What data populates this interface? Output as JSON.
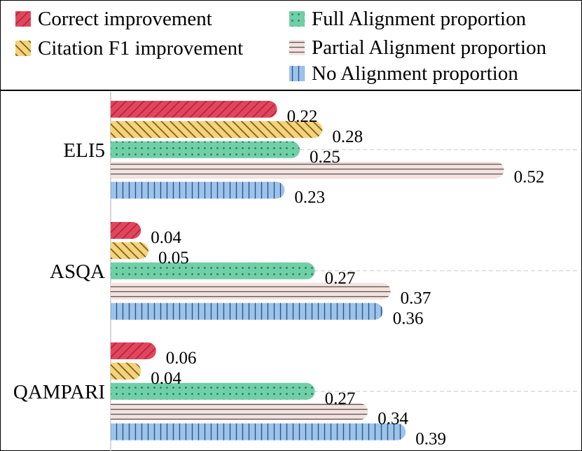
{
  "chart_data": {
    "type": "bar",
    "orientation": "horizontal",
    "categories": [
      "ELI5",
      "ASQA",
      "QAMPARI"
    ],
    "series": [
      {
        "name": "Correct improvement",
        "color": "#e0475e",
        "pattern": "diagonal-back",
        "values": [
          0.22,
          0.04,
          0.06
        ]
      },
      {
        "name": "Citation F1 improvement",
        "color": "#f6d37a",
        "pattern": "diagonal-forward",
        "values": [
          0.28,
          0.05,
          0.04
        ]
      },
      {
        "name": "Full Alignment proportion",
        "color": "#6fcfa6",
        "pattern": "dots",
        "values": [
          0.25,
          0.27,
          0.27
        ]
      },
      {
        "name": "Partial Alignment proportion",
        "color": "#f5e2de",
        "pattern": "horizontal-lines",
        "values": [
          0.52,
          0.37,
          0.34
        ]
      },
      {
        "name": "No Alignment proportion",
        "color": "#9cc3ea",
        "pattern": "vertical-lines",
        "values": [
          0.23,
          0.36,
          0.39
        ]
      }
    ],
    "value_labels": [
      [
        "0.22",
        "0.04",
        "0.06"
      ],
      [
        "0.28",
        "0.05",
        "0.04"
      ],
      [
        "0.25",
        "0.27",
        "0.27"
      ],
      [
        "0.52",
        "0.37",
        "0.34"
      ],
      [
        "0.23",
        "0.36",
        "0.39"
      ]
    ],
    "xlim": [
      0,
      0.6
    ],
    "xlabel": "",
    "ylabel": "",
    "legend_position": "top",
    "grid": "horizontal-dashed"
  }
}
